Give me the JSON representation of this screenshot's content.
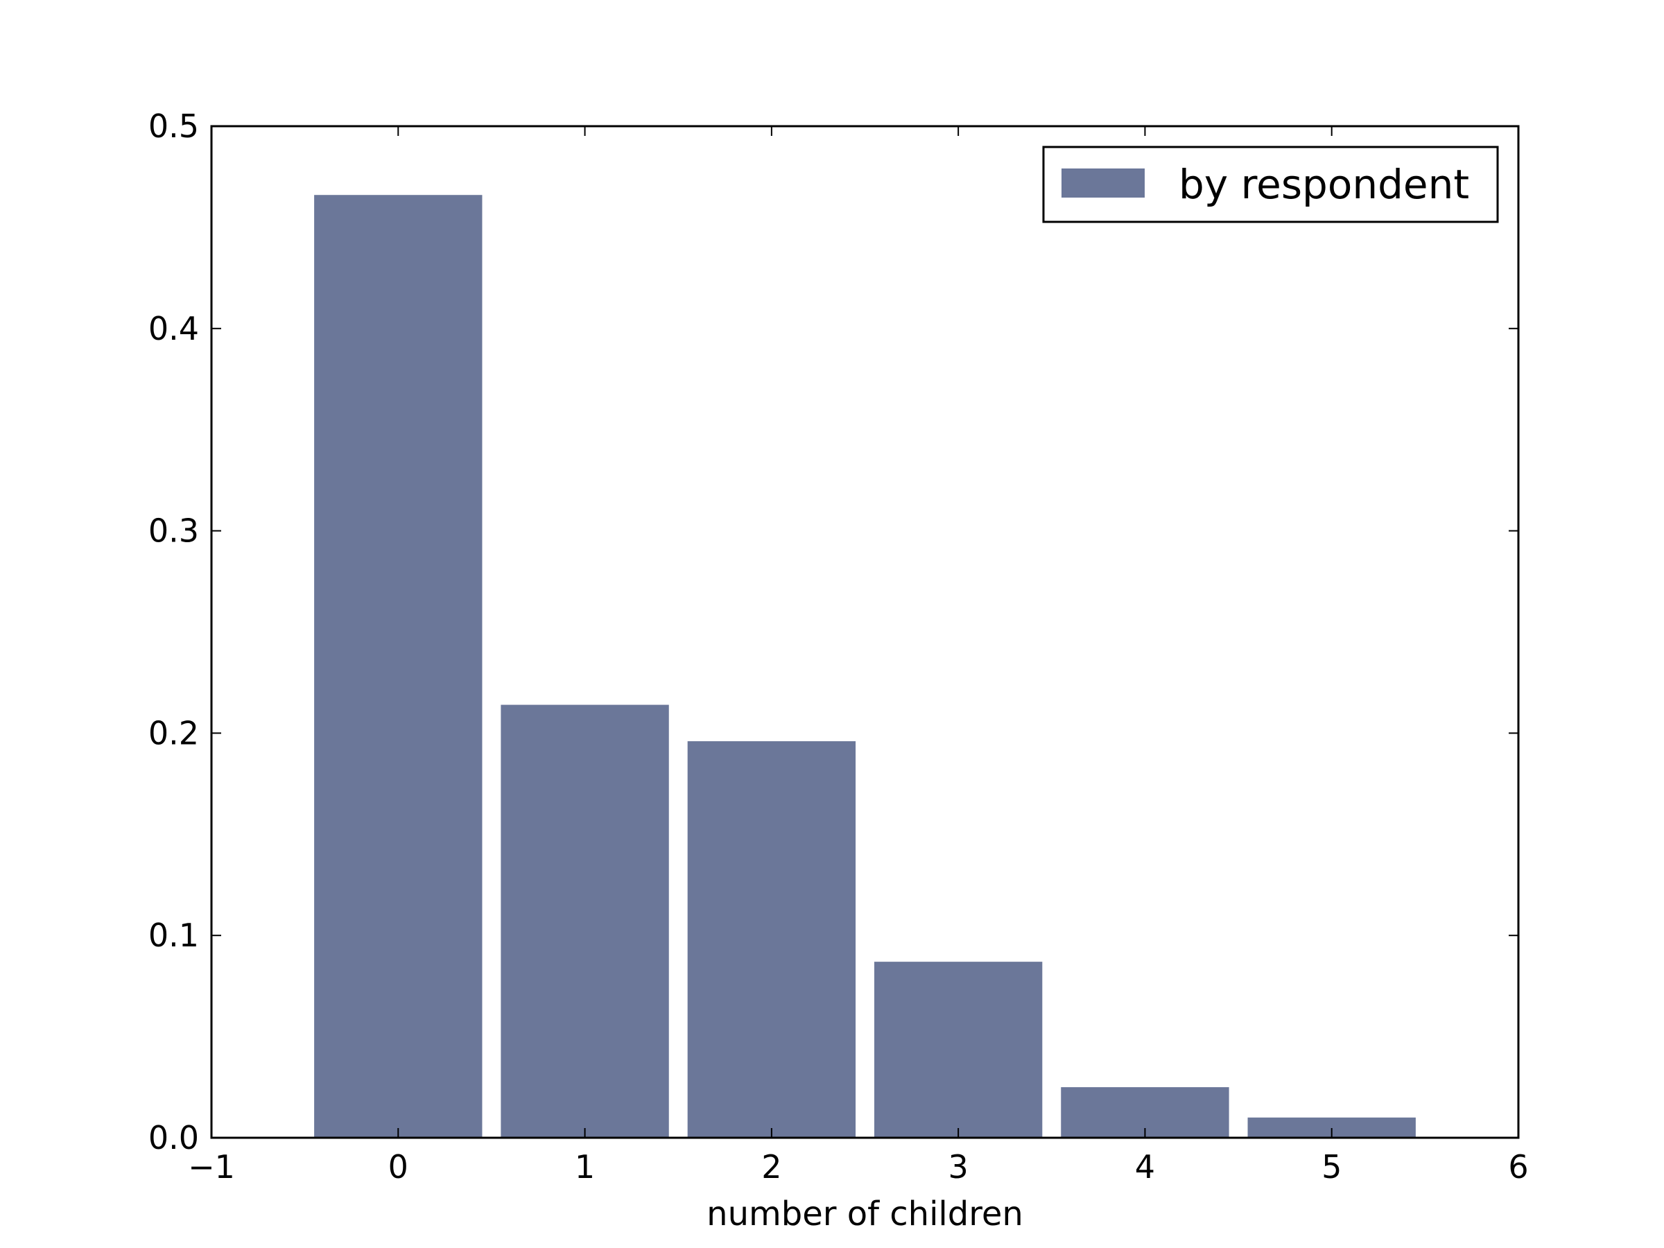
{
  "chart_data": {
    "type": "bar",
    "x": [
      0,
      1,
      2,
      3,
      4,
      5
    ],
    "series": [
      {
        "name": "by respondent",
        "values": [
          0.466,
          0.214,
          0.196,
          0.087,
          0.025,
          0.01
        ],
        "color": "#6b7799"
      }
    ],
    "bar_width": 0.9,
    "xlabel": "number of children",
    "ylabel": "",
    "title": "",
    "xlim": [
      -1,
      6
    ],
    "ylim": [
      0.0,
      0.5
    ],
    "xticks": [
      "−1",
      "0",
      "1",
      "2",
      "3",
      "4",
      "5",
      "6"
    ],
    "yticks": [
      "0.0",
      "0.1",
      "0.2",
      "0.3",
      "0.4",
      "0.5"
    ],
    "grid": false,
    "legend_position": "top-right"
  }
}
